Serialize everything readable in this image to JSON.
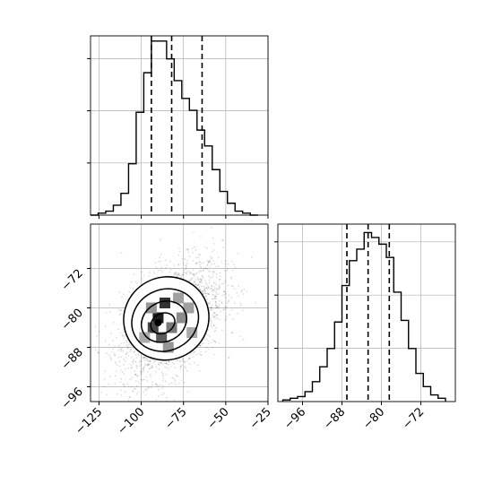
{
  "chart_data": {
    "type": "corner",
    "grid": true,
    "panels": [
      {
        "type": "histogram",
        "parameter_index": 0,
        "xlim": [
          -130,
          -25
        ],
        "bin_edges": [
          -130,
          -125.5,
          -121,
          -116.5,
          -112,
          -107.5,
          -103,
          -98.5,
          -94,
          -89.5,
          -85,
          -80.5,
          -76,
          -71.5,
          -67,
          -62.5,
          -58,
          -53.5,
          -49,
          -44.5,
          -40,
          -35.5,
          -31
        ],
        "counts": [
          0,
          1,
          2,
          5,
          11,
          26,
          52,
          72,
          88,
          88,
          79,
          68,
          59,
          53,
          43,
          35,
          23,
          12,
          6,
          2,
          1,
          0
        ],
        "quantiles": [
          -94,
          -82,
          -64
        ],
        "x_ticks": [
          -125,
          -100,
          -75,
          -50,
          -25
        ]
      },
      {
        "type": "histogram2d",
        "xlim": [
          -130,
          -25
        ],
        "ylim": [
          -99,
          -63
        ],
        "x_ticks": [
          -125,
          -100,
          -75,
          -50,
          -25
        ],
        "x_tick_labels": [
          "−125",
          "−100",
          "−75",
          "−50",
          "−25"
        ],
        "y_ticks": [
          -72,
          -80,
          -88,
          -96
        ],
        "y_tick_labels": [
          "−72",
          "−80",
          "−88",
          "−96"
        ],
        "scatter_center": [
          -82,
          -82.5
        ],
        "density_peak": [
          -90,
          -83
        ],
        "dark_cells": [
          {
            "x": -90,
            "y": -82,
            "level": 1.0
          },
          {
            "x": -86,
            "y": -79,
            "level": 0.9
          },
          {
            "x": -93,
            "y": -84,
            "level": 0.8
          },
          {
            "x": -88,
            "y": -86,
            "level": 0.7
          },
          {
            "x": -82,
            "y": -84,
            "level": 0.55
          },
          {
            "x": -76,
            "y": -82,
            "level": 0.45
          },
          {
            "x": -72,
            "y": -80,
            "level": 0.35
          },
          {
            "x": -78,
            "y": -78,
            "level": 0.35
          },
          {
            "x": -94,
            "y": -80,
            "level": 0.4
          },
          {
            "x": -84,
            "y": -88,
            "level": 0.4
          },
          {
            "x": -70,
            "y": -85,
            "level": 0.3
          },
          {
            "x": -98,
            "y": -86,
            "level": 0.3
          }
        ]
      },
      {
        "type": "histogram",
        "parameter_index": 1,
        "xlim": [
          -101,
          -65
        ],
        "bin_edges": [
          -100,
          -98.5,
          -97,
          -95.5,
          -94,
          -92.5,
          -91,
          -89.5,
          -88,
          -86.5,
          -85,
          -83.5,
          -82,
          -80.5,
          -79,
          -77.5,
          -76,
          -74.5,
          -73,
          -71.5,
          -70,
          -68.5,
          -67
        ],
        "counts": [
          1,
          2,
          3,
          6,
          12,
          21,
          32,
          48,
          70,
          85,
          92,
          102,
          99,
          95,
          87,
          66,
          49,
          32,
          17,
          9,
          4,
          2
        ],
        "quantiles": [
          -87,
          -82.7,
          -78.4
        ],
        "x_ticks": [
          -96,
          -88,
          -80,
          -72
        ],
        "x_tick_labels": [
          "−96",
          "−88",
          "−80",
          "−72"
        ]
      }
    ]
  }
}
